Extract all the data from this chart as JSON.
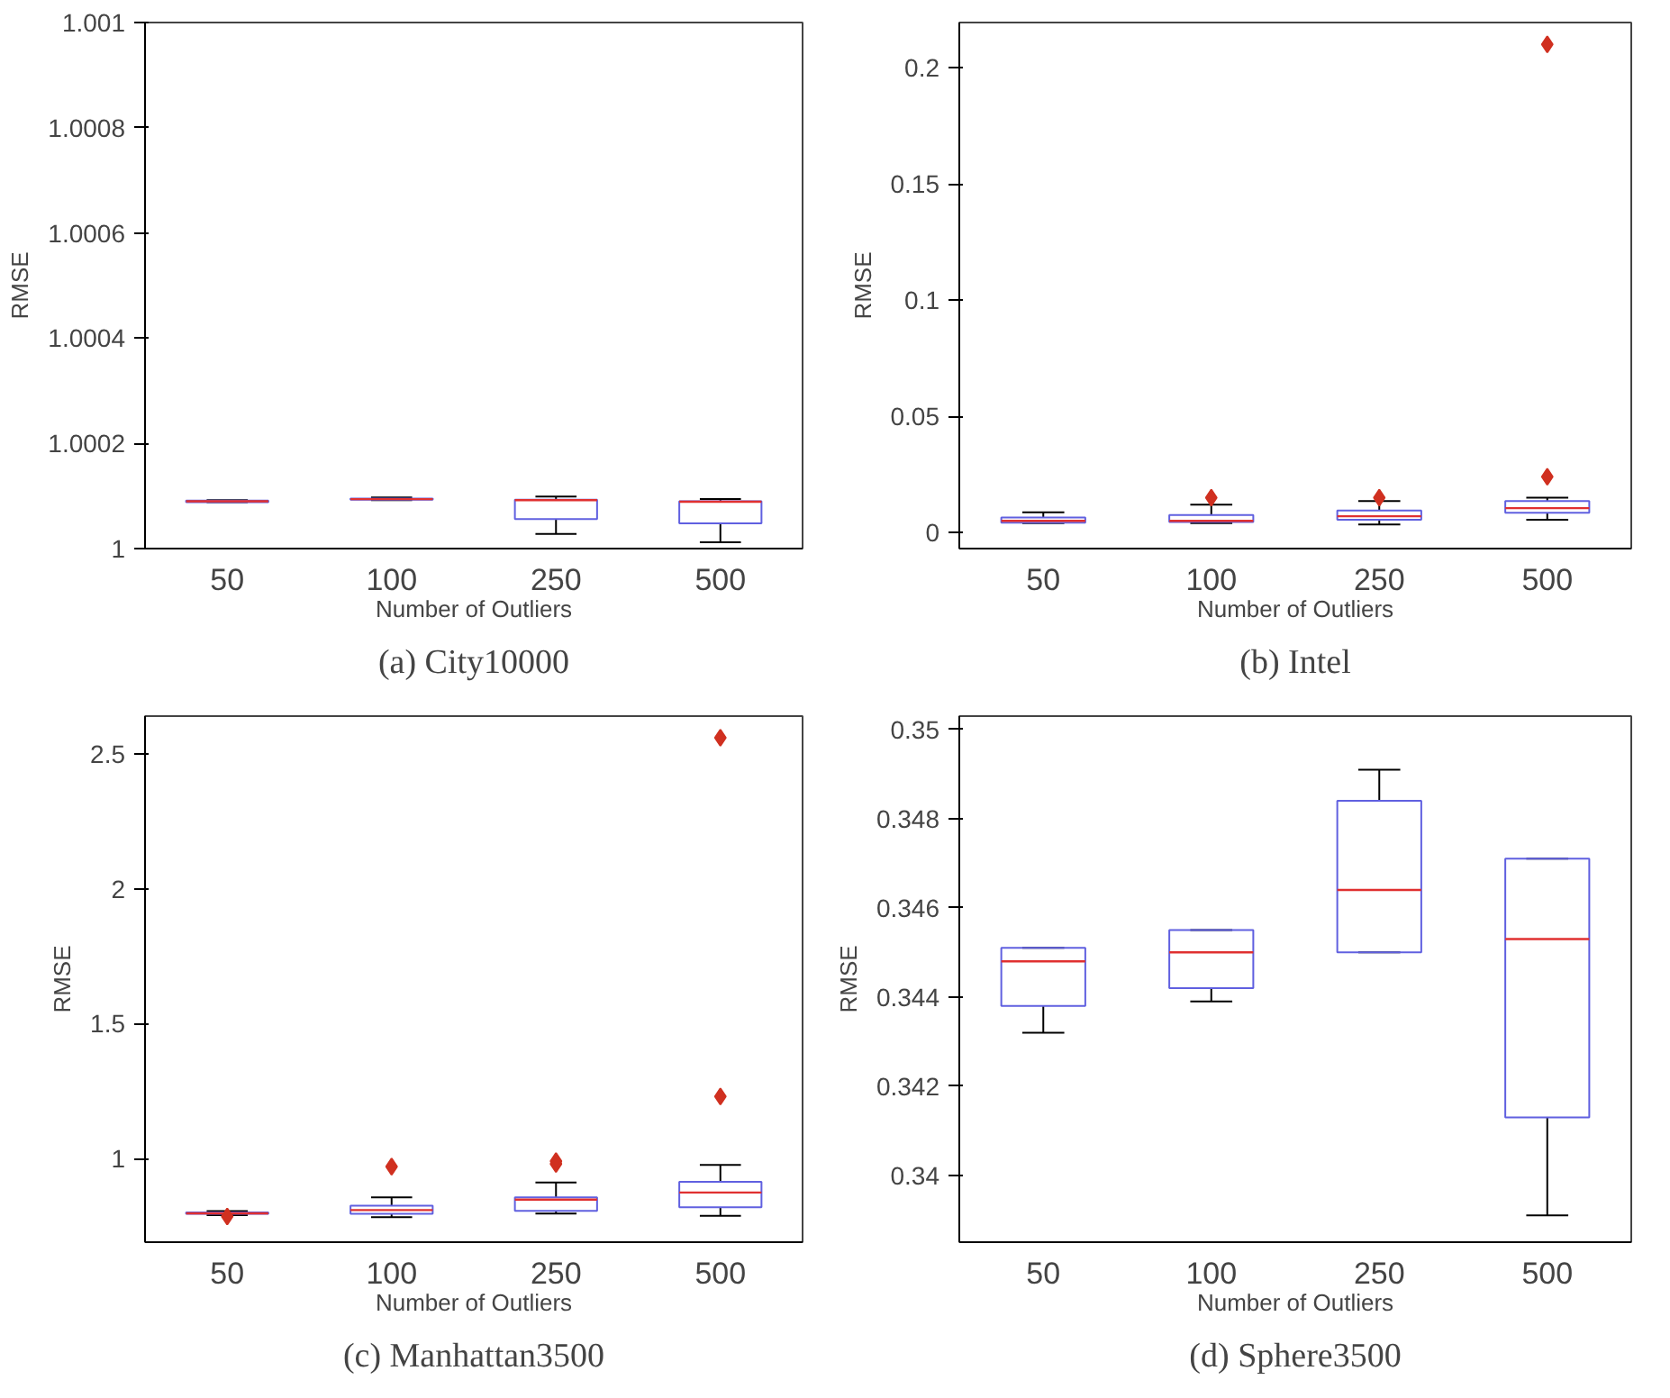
{
  "chart_data": [
    {
      "type": "box",
      "title": "(a) City10000",
      "xlabel": "Number of Outliers",
      "ylabel": "RMSE",
      "categories": [
        "50",
        "100",
        "250",
        "500"
      ],
      "ylim": [
        1,
        1.001
      ],
      "yticks": [
        1,
        1.0002,
        1.0004,
        1.0006,
        1.0008,
        1.001
      ],
      "grid": false,
      "series": [
        {
          "color": "#6060e0",
          "boxes": [
            {
              "low": 1.000088,
              "q1": 1.000088,
              "median": 1.00009,
              "q3": 1.000091,
              "high": 1.000092
            },
            {
              "low": 1.000092,
              "q1": 1.000093,
              "median": 1.000094,
              "q3": 1.000095,
              "high": 1.000097
            },
            {
              "low": 1.000028,
              "q1": 1.000056,
              "median": 1.000092,
              "q3": 1.000093,
              "high": 1.000099
            },
            {
              "low": 1.000012,
              "q1": 1.000048,
              "median": 1.000089,
              "q3": 1.00009,
              "high": 1.000094
            }
          ]
        }
      ]
    },
    {
      "type": "box",
      "title": "(b) Intel",
      "xlabel": "Number of Outliers",
      "ylabel": "RMSE",
      "categories": [
        "50",
        "100",
        "250",
        "500"
      ],
      "ylim": [
        -0.0069,
        0.2194
      ],
      "yticks": [
        0,
        0.05,
        0.1,
        0.15,
        0.2
      ],
      "grid": false,
      "series": [
        {
          "color": "#6060e0",
          "boxes": [
            {
              "low": 0.004,
              "q1": 0.0042,
              "median": 0.005,
              "q3": 0.0065,
              "high": 0.0087
            },
            {
              "low": 0.004,
              "q1": 0.0045,
              "median": 0.005,
              "q3": 0.0075,
              "high": 0.012,
              "outliers": [
                0.015
              ]
            },
            {
              "low": 0.0035,
              "q1": 0.0055,
              "median": 0.007,
              "q3": 0.0095,
              "high": 0.0135,
              "outliers": [
                0.015
              ]
            },
            {
              "low": 0.0055,
              "q1": 0.0085,
              "median": 0.0105,
              "q3": 0.0135,
              "high": 0.015,
              "outliers": [
                0.024,
                0.21
              ]
            }
          ]
        }
      ]
    },
    {
      "type": "box",
      "title": "(c) Manhattan3500",
      "xlabel": "Number of Outliers",
      "ylabel": "RMSE",
      "categories": [
        "50",
        "100",
        "250",
        "500"
      ],
      "ylim": [
        0.69,
        2.64
      ],
      "yticks": [
        1,
        1.5,
        2,
        2.5
      ],
      "grid": false,
      "series": [
        {
          "color": "#6060e0",
          "boxes": [
            {
              "low": 0.79,
              "q1": 0.795,
              "median": 0.797,
              "q3": 0.8,
              "high": 0.805,
              "outliers": [
                0.785
              ]
            },
            {
              "low": 0.783,
              "q1": 0.795,
              "median": 0.809,
              "q3": 0.825,
              "high": 0.856,
              "outliers": [
                0.97
              ]
            },
            {
              "low": 0.796,
              "q1": 0.806,
              "median": 0.848,
              "q3": 0.856,
              "high": 0.911,
              "outliers": [
                0.98,
                0.99
              ]
            },
            {
              "low": 0.788,
              "q1": 0.819,
              "median": 0.874,
              "q3": 0.914,
              "high": 0.976,
              "outliers": [
                1.23,
                2.56
              ]
            }
          ]
        }
      ]
    },
    {
      "type": "box",
      "title": "(d) Sphere3500",
      "xlabel": "Number of Outliers",
      "ylabel": "RMSE",
      "categories": [
        "50",
        "100",
        "250",
        "500"
      ],
      "ylim": [
        0.3385,
        0.3503
      ],
      "yticks": [
        0.34,
        0.342,
        0.344,
        0.346,
        0.348,
        0.35
      ],
      "grid": false,
      "series": [
        {
          "color": "#6060e0",
          "boxes": [
            {
              "low": 0.3432,
              "q1": 0.3438,
              "median": 0.3448,
              "q3": 0.3451,
              "high": 0.3451
            },
            {
              "low": 0.3439,
              "q1": 0.3442,
              "median": 0.345,
              "q3": 0.3455,
              "high": 0.3455
            },
            {
              "low": 0.345,
              "q1": 0.345,
              "median": 0.3464,
              "q3": 0.3484,
              "high": 0.3491
            },
            {
              "low": 0.3391,
              "q1": 0.3413,
              "median": 0.3453,
              "q3": 0.3471,
              "high": 0.3471
            }
          ]
        }
      ]
    }
  ]
}
